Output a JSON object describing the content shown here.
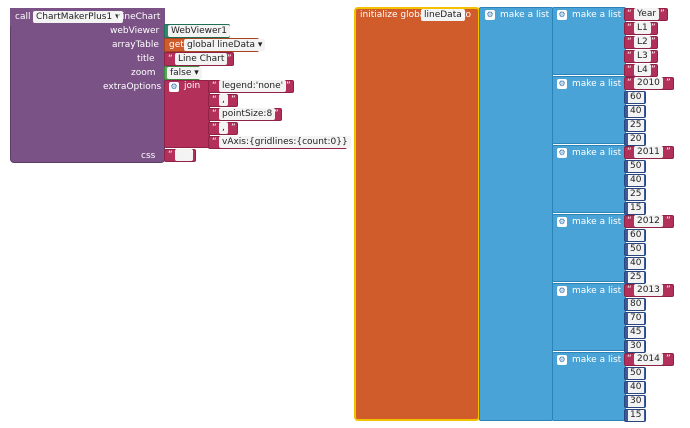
{
  "call_block": {
    "call_label": "call",
    "component": "ChartMakerPlus1",
    "method": ".LineChart",
    "params": {
      "webViewer": "webViewer",
      "arrayTable": "arrayTable",
      "title": "title",
      "zoom": "zoom",
      "extraOptions": "extraOptions",
      "css": "css"
    },
    "webviewer_value": "WebViewer1",
    "get_label": "get",
    "get_var": "global lineData",
    "title_value": "Line Chart",
    "zoom_value": "false",
    "join_label": "join",
    "join_items": [
      "legend:'none'",
      ",",
      "pointSize:8",
      ",",
      "vAxis:{gridlines:{count:0}}"
    ],
    "css_value": ""
  },
  "init_block": {
    "label": "initialize global",
    "var_name": "lineData",
    "to_label": "to",
    "make_list": "make a list",
    "header": [
      "Year",
      "L1",
      "L2",
      "L3",
      "L4"
    ],
    "rows": [
      {
        "year": "2010",
        "values": [
          "60",
          "40",
          "25",
          "20"
        ]
      },
      {
        "year": "2011",
        "values": [
          "50",
          "40",
          "25",
          "15"
        ]
      },
      {
        "year": "2012",
        "values": [
          "60",
          "50",
          "40",
          "25"
        ]
      },
      {
        "year": "2013",
        "values": [
          "80",
          "70",
          "45",
          "30"
        ]
      },
      {
        "year": "2014",
        "values": [
          "50",
          "40",
          "30",
          "15"
        ]
      }
    ]
  }
}
